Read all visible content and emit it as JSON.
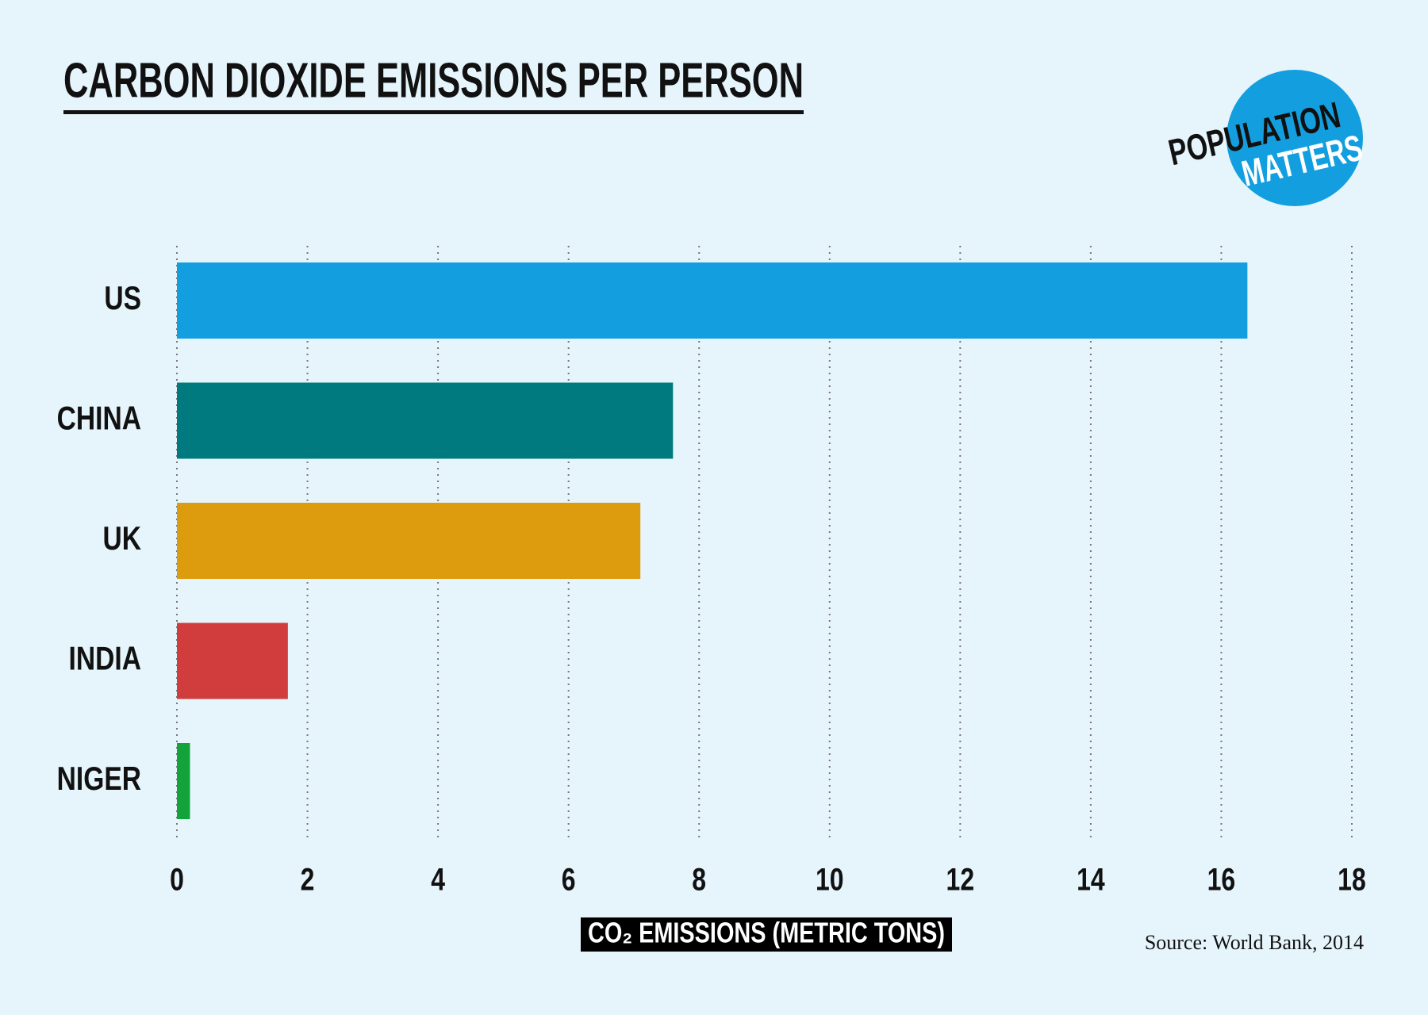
{
  "chart_data": {
    "type": "bar",
    "orientation": "horizontal",
    "title": "CARBON DIOXIDE EMISSIONS PER PERSON",
    "categories": [
      "US",
      "CHINA",
      "UK",
      "INDIA",
      "NIGER"
    ],
    "values": [
      16.4,
      7.6,
      7.1,
      1.7,
      0.2
    ],
    "colors": [
      "#139fdf",
      "#007a7e",
      "#dd9b0e",
      "#d13d3d",
      "#12a33a"
    ],
    "xlim": [
      0,
      18
    ],
    "xticks": [
      0,
      2,
      4,
      6,
      8,
      10,
      12,
      14,
      16,
      18
    ],
    "grid": true,
    "xlabel": "CO₂ EMISSIONS (METRIC TONS)",
    "source": "Source: World Bank, 2014",
    "logo": [
      "POPULATION",
      "MATTERS"
    ]
  }
}
